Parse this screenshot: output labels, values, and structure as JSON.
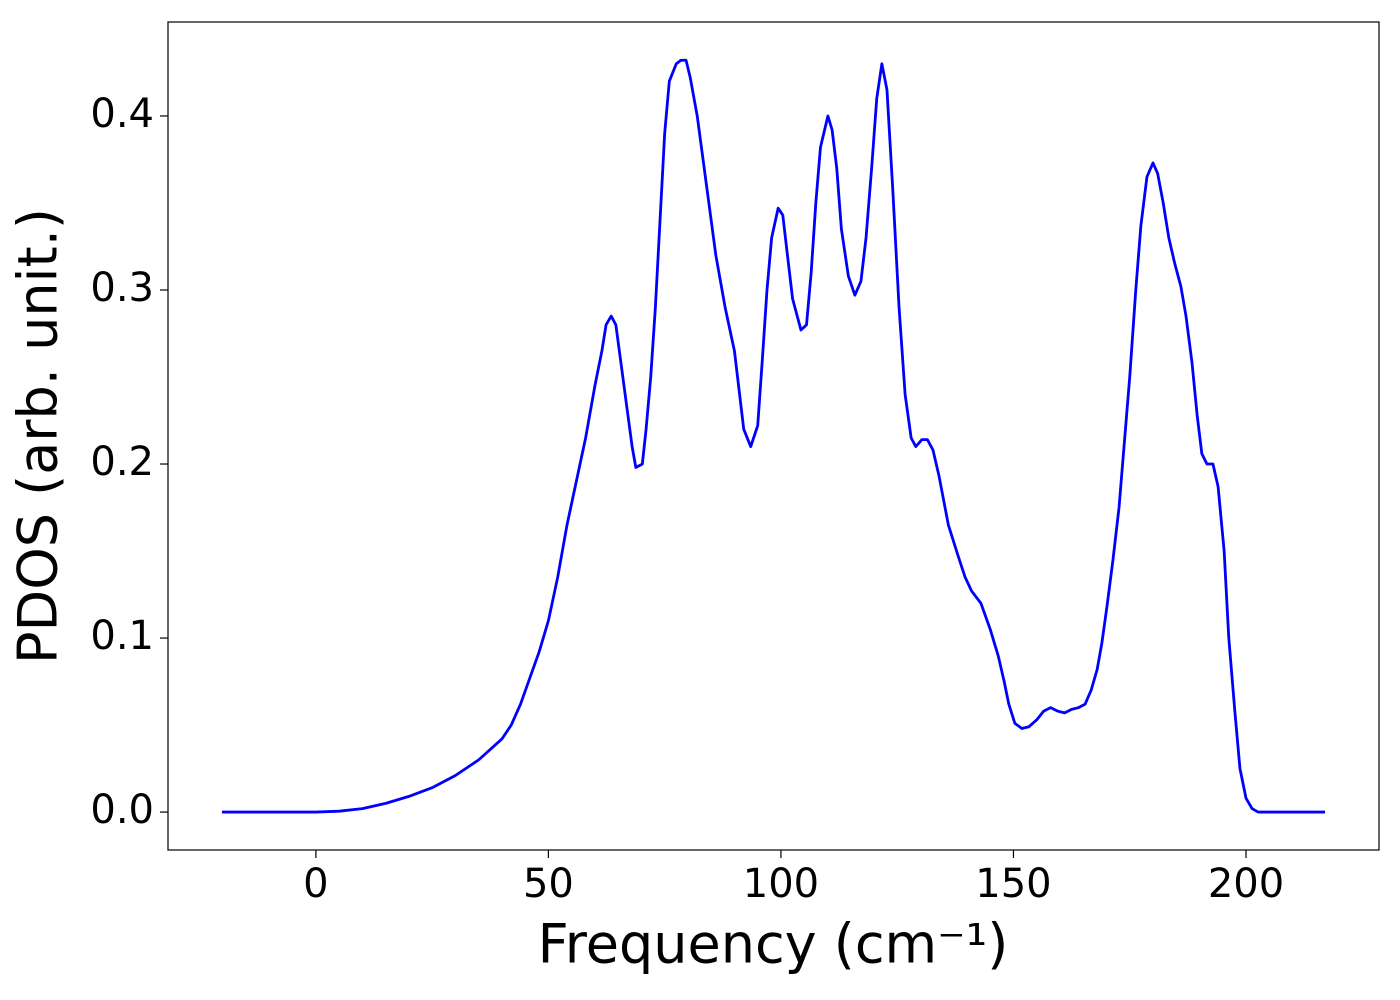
{
  "chart_data": {
    "type": "line",
    "xlabel": "Frequency (cm⁻¹)",
    "ylabel": "PDOS (arb. unit.)",
    "xlim": [
      -31.8,
      228.6
    ],
    "ylim": [
      -0.0218,
      0.454
    ],
    "xticks": [
      0,
      50,
      100,
      150,
      200
    ],
    "yticks": [
      {
        "value": 0,
        "label": "0.0"
      },
      0.1,
      0.2,
      0.3,
      0.4
    ],
    "grid": false,
    "series": [
      {
        "color": "#0000ff",
        "x": [
          -20.2,
          0,
          5,
          10,
          15,
          20,
          25,
          30,
          35,
          40,
          42,
          44,
          46,
          48,
          50,
          52,
          54,
          56,
          58,
          60,
          61.5,
          62.4,
          63.5,
          64.5,
          65.5,
          67,
          68,
          68.8,
          70.2,
          71,
          72,
          73,
          74,
          75,
          76,
          77.5,
          78.5,
          79.6,
          80.5,
          82,
          84,
          86,
          88,
          90,
          92,
          93.5,
          95,
          96,
          97,
          98,
          99.4,
          100.4,
          101.4,
          102.5,
          104.3,
          105.5,
          106.5,
          107.5,
          108.5,
          110.1,
          111,
          112,
          113,
          114.5,
          115.9,
          117.2,
          118.3,
          119.5,
          120.6,
          121.7,
          122.8,
          124,
          125.4,
          126.7,
          128,
          129,
          130.3,
          131.5,
          132.7,
          134,
          136,
          138,
          139.6,
          141,
          143,
          145,
          146.7,
          148,
          149,
          150.3,
          151.8,
          153.3,
          155,
          156.5,
          158,
          159.5,
          161,
          162.5,
          164,
          165.4,
          166.7,
          168,
          169,
          170.1,
          171.4,
          172.7,
          175,
          176.3,
          177.4,
          178.7,
          180,
          181,
          182.2,
          183.4,
          184.7,
          186,
          187.1,
          188.4,
          189.5,
          190.5,
          191.6,
          192.9,
          194,
          195.3,
          196.3,
          197.6,
          198.7,
          200,
          201.3,
          202.6,
          217
        ],
        "values": [
          0,
          0,
          0.0005,
          0.002,
          0.005,
          0.009,
          0.014,
          0.021,
          0.03,
          0.042,
          0.05,
          0.062,
          0.077,
          0.092,
          0.11,
          0.135,
          0.165,
          0.19,
          0.215,
          0.245,
          0.265,
          0.28,
          0.285,
          0.28,
          0.26,
          0.23,
          0.21,
          0.198,
          0.2,
          0.22,
          0.25,
          0.29,
          0.34,
          0.39,
          0.42,
          0.43,
          0.432,
          0.432,
          0.422,
          0.4,
          0.36,
          0.32,
          0.29,
          0.265,
          0.22,
          0.21,
          0.222,
          0.26,
          0.3,
          0.33,
          0.347,
          0.343,
          0.32,
          0.295,
          0.277,
          0.28,
          0.31,
          0.35,
          0.382,
          0.4,
          0.392,
          0.37,
          0.335,
          0.308,
          0.297,
          0.305,
          0.33,
          0.37,
          0.41,
          0.43,
          0.415,
          0.36,
          0.29,
          0.24,
          0.215,
          0.21,
          0.214,
          0.214,
          0.208,
          0.193,
          0.165,
          0.148,
          0.135,
          0.127,
          0.12,
          0.105,
          0.09,
          0.075,
          0.062,
          0.051,
          0.048,
          0.049,
          0.053,
          0.058,
          0.06,
          0.058,
          0.057,
          0.059,
          0.06,
          0.062,
          0.07,
          0.082,
          0.097,
          0.118,
          0.145,
          0.175,
          0.25,
          0.3,
          0.337,
          0.365,
          0.373,
          0.367,
          0.35,
          0.33,
          0.315,
          0.302,
          0.285,
          0.258,
          0.228,
          0.206,
          0.2,
          0.2,
          0.187,
          0.15,
          0.1,
          0.058,
          0.025,
          0.008,
          0.002,
          0,
          0
        ]
      }
    ]
  }
}
